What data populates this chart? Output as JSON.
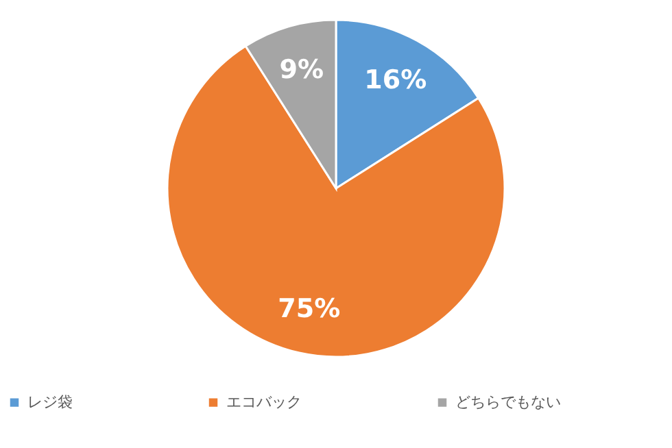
{
  "chart_data": {
    "type": "pie",
    "categories": [
      "レジ袋",
      "エコバック",
      "どちらでもない"
    ],
    "values": [
      16,
      75,
      9
    ],
    "colors": [
      "#5b9bd5",
      "#ed7d31",
      "#a5a5a5"
    ],
    "value_labels": [
      "16%",
      "75%",
      "9%"
    ],
    "legend": "bottom"
  }
}
